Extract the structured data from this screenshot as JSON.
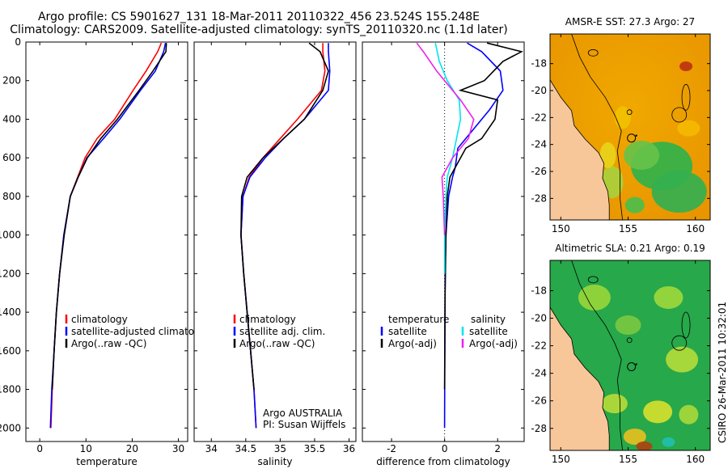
{
  "title": {
    "line1": "Argo profile: CS 5901627_131 18-Mar-2011 20110322_456 23.524S 155.248E",
    "line2": "Climatology: CARS2009. Satellite-adjusted climatology: synTS_20110320.nc (1.1d later)"
  },
  "credit": "CSIRO 26-Mar-2011 10:32:01",
  "colors": {
    "red": "#ff0000",
    "blue": "#0000ff",
    "black": "#000000",
    "cyan": "#00e5ee",
    "magenta": "#ee22ee",
    "land": "#f7c79a"
  },
  "chart_data": [
    {
      "type": "line",
      "xlabel": "temperature",
      "xticks": [
        "0",
        "10",
        "20",
        "30"
      ],
      "xlim": [
        -3,
        32
      ],
      "ylim": [
        2070,
        0
      ],
      "yticks": [
        "0",
        "200",
        "400",
        "600",
        "800",
        "1000",
        "1200",
        "1400",
        "1600",
        "1800",
        "2000"
      ],
      "legend": {
        "placement": "lower-center",
        "entries": [
          "climatology",
          "satellite-adjusted climatology",
          "Argo(..raw -QC)"
        ]
      },
      "series": [
        {
          "name": "climatology",
          "color": "#ff0000",
          "x": [
            26.3,
            25.5,
            23,
            20.2,
            16.2,
            12.4,
            9.8,
            8.2,
            6.6,
            5.2,
            4.3,
            3.6,
            3.1,
            2.7,
            2.4
          ],
          "y": [
            5,
            50,
            150,
            250,
            400,
            500,
            600,
            700,
            800,
            1000,
            1200,
            1400,
            1600,
            1800,
            2000
          ]
        },
        {
          "name": "satellite-adjusted climatology",
          "color": "#0000ff",
          "x": [
            27.2,
            26.8,
            25,
            21.8,
            17.3,
            13.8,
            10.2,
            8.3,
            6.6,
            5.2,
            4.3,
            3.6,
            3.1,
            2.6,
            2.3
          ],
          "y": [
            5,
            50,
            150,
            250,
            400,
            500,
            600,
            700,
            800,
            1000,
            1200,
            1400,
            1600,
            1800,
            2000
          ]
        },
        {
          "name": "Argo(..raw -QC)",
          "color": "#000000",
          "x": [
            27.4,
            27.3,
            24.5,
            21.5,
            16.8,
            13.2,
            10.3,
            8.3,
            6.6,
            5.3,
            4.3,
            3.6,
            3.1,
            2.7
          ],
          "y": [
            5,
            50,
            150,
            250,
            400,
            500,
            600,
            700,
            800,
            1000,
            1200,
            1400,
            1600,
            1800
          ]
        }
      ]
    },
    {
      "type": "line",
      "xlabel": "salinity",
      "xticks": [
        "34",
        "34.5",
        "35",
        "35.5",
        "36"
      ],
      "xlim": [
        33.75,
        36.1
      ],
      "ylim": [
        2070,
        0
      ],
      "legend": {
        "placement": "lower-center",
        "entries": [
          "climatology",
          "satellite adj. clim.",
          "Argo(..raw -QC)"
        ]
      },
      "annotation": [
        "Argo AUSTRALIA",
        "PI: Susan Wijffels"
      ],
      "series": [
        {
          "name": "climatology",
          "color": "#ff0000",
          "x": [
            35.62,
            35.62,
            35.65,
            35.6,
            35.25,
            35.0,
            34.75,
            34.55,
            34.46,
            34.43,
            34.47,
            34.52,
            34.57,
            34.62,
            34.65
          ],
          "y": [
            5,
            50,
            150,
            250,
            400,
            500,
            600,
            700,
            800,
            1000,
            1200,
            1400,
            1600,
            1800,
            2000
          ]
        },
        {
          "name": "satellite adj. clim.",
          "color": "#0000ff",
          "x": [
            35.7,
            35.7,
            35.72,
            35.7,
            35.35,
            35.05,
            34.78,
            34.56,
            34.46,
            34.43,
            34.47,
            34.52,
            34.57,
            34.62,
            34.65
          ],
          "y": [
            5,
            50,
            150,
            250,
            400,
            500,
            600,
            700,
            800,
            1000,
            1200,
            1400,
            1600,
            1800,
            2000
          ]
        },
        {
          "name": "Argo(..raw -QC)",
          "color": "#000000",
          "x": [
            35.42,
            35.58,
            35.7,
            35.62,
            35.35,
            35.05,
            34.75,
            34.52,
            34.44,
            34.43,
            34.47,
            34.52,
            34.57,
            34.62
          ],
          "y": [
            5,
            50,
            150,
            250,
            400,
            500,
            600,
            700,
            800,
            1000,
            1200,
            1400,
            1600,
            1800
          ]
        }
      ]
    },
    {
      "type": "line",
      "xlabel": "difference from climatology",
      "xticks": [
        "-2",
        "0",
        "2"
      ],
      "xlim": [
        -3.1,
        3.0
      ],
      "ylim": [
        2070,
        0
      ],
      "legend": {
        "placement": "lower-center",
        "entries": [
          "temperature",
          "satellite",
          "Argo(-adj)",
          "salinity",
          "satellite",
          "Argo(-adj)"
        ]
      },
      "series": [
        {
          "name": "satellite",
          "color": "#0000ff",
          "x": [
            0.85,
            1.4,
            2.1,
            2.2,
            1.7,
            1.1,
            0.5,
            0.4,
            0.3,
            0.15,
            0.05,
            0.02,
            0.01,
            0
          ],
          "y": [
            5,
            50,
            150,
            250,
            350,
            450,
            550,
            650,
            700,
            800,
            1000,
            1200,
            1500,
            2000
          ]
        },
        {
          "name": "Argo(-adj)",
          "color": "#000000",
          "x": [
            1.6,
            2.9,
            2.2,
            1.5,
            0.6,
            2.0,
            1.9,
            1.4,
            0.8,
            0.4,
            0.2,
            0.1,
            0.05,
            0.02,
            0
          ],
          "y": [
            5,
            50,
            100,
            200,
            250,
            300,
            400,
            500,
            550,
            650,
            700,
            800,
            1000,
            1300,
            1800
          ]
        },
        {
          "name": "satellite",
          "color": "#00e5ee",
          "x": [
            -0.35,
            -0.2,
            0.1,
            0.55,
            0.6,
            0.45,
            0.3,
            0.1,
            0.05,
            0,
            0
          ],
          "y": [
            5,
            100,
            200,
            300,
            400,
            500,
            600,
            700,
            800,
            1000,
            1200
          ]
        },
        {
          "name": "Argo(-adj)",
          "color": "#ee22ee",
          "x": [
            -1.05,
            -0.8,
            -0.3,
            0.6,
            1.1,
            0.9,
            0.3,
            -0.1,
            -0.05,
            0
          ],
          "y": [
            5,
            50,
            150,
            300,
            400,
            500,
            600,
            700,
            800,
            1000
          ]
        }
      ]
    },
    {
      "type": "heatmap",
      "title": "AMSR-E SST: 27.3 Argo: 27",
      "xticks": [
        "150",
        "155",
        "160"
      ],
      "yticks": [
        "-18",
        "-20",
        "-22",
        "-24",
        "-26",
        "-28"
      ],
      "xlim": [
        149.2,
        161.1
      ],
      "ylim": [
        -29.6,
        -15.8
      ],
      "marker": {
        "lon": 155.248,
        "lat": -23.524
      }
    },
    {
      "type": "heatmap",
      "title": "Altimetric SLA: 0.21 Argo: 0.19",
      "xticks": [
        "150",
        "155",
        "160"
      ],
      "yticks": [
        "-18",
        "-20",
        "-22",
        "-24",
        "-26",
        "-28"
      ],
      "xlim": [
        149.2,
        161.1
      ],
      "ylim": [
        -29.6,
        -15.8
      ],
      "marker": {
        "lon": 155.248,
        "lat": -23.524
      }
    }
  ]
}
